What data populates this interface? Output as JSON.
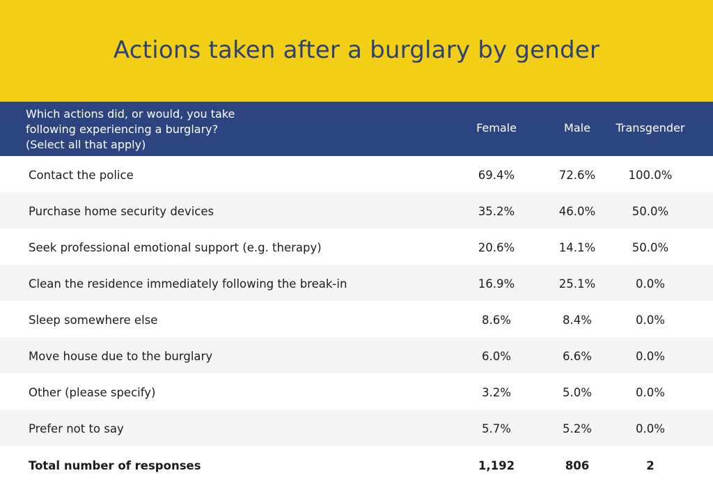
{
  "chart_data": {
    "type": "table",
    "title": "Actions taken after a burglary by gender",
    "question": "Which actions did, or would, you take\nfollowing experiencing a burglary?\n(Select all that apply)",
    "columns": [
      "Female",
      "Male",
      "Transgender"
    ],
    "rows": [
      {
        "label": "Contact the police",
        "values": [
          "69.4%",
          "72.6%",
          "100.0%"
        ]
      },
      {
        "label": "Purchase home security devices",
        "values": [
          "35.2%",
          "46.0%",
          "50.0%"
        ]
      },
      {
        "label": "Seek professional emotional support (e.g. therapy)",
        "values": [
          "20.6%",
          "14.1%",
          "50.0%"
        ]
      },
      {
        "label": "Clean the residence immediately following the break-in",
        "values": [
          "16.9%",
          "25.1%",
          "0.0%"
        ]
      },
      {
        "label": "Sleep somewhere else",
        "values": [
          "8.6%",
          "8.4%",
          "0.0%"
        ]
      },
      {
        "label": "Move house due to the burglary",
        "values": [
          "6.0%",
          "6.6%",
          "0.0%"
        ]
      },
      {
        "label": "Other (please specify)",
        "values": [
          "3.2%",
          "5.0%",
          "0.0%"
        ]
      },
      {
        "label": "Prefer not to say",
        "values": [
          "5.7%",
          "5.2%",
          "0.0%"
        ]
      }
    ],
    "total": {
      "label": "Total number of responses",
      "values": [
        "1,192",
        "806",
        "2"
      ]
    },
    "colors": {
      "title_band": "#f2cf15",
      "title_text": "#2c4177",
      "header_band": "#2c4580",
      "stripe": "#f5f5f5"
    }
  }
}
